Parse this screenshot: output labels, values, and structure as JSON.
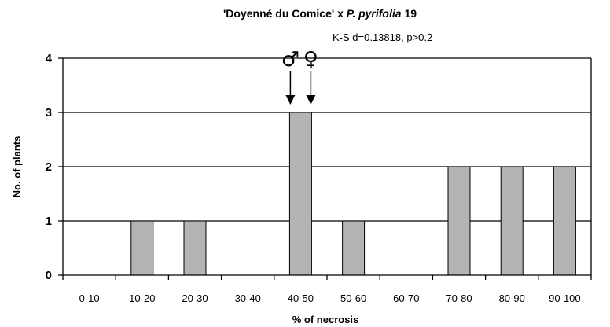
{
  "chart_data": {
    "type": "bar",
    "title_parts": [
      "'Doyenné du Comice' x ",
      "P. pyrifolia",
      " 19"
    ],
    "annotation": "K-S d=0.13818, p>0.2",
    "xlabel": "% of necrosis",
    "ylabel": "No. of plants",
    "categories": [
      "0-10",
      "10-20",
      "20-30",
      "30-40",
      "40-50",
      "50-60",
      "60-70",
      "70-80",
      "80-90",
      "90-100"
    ],
    "values": [
      0,
      1,
      1,
      0,
      3,
      1,
      0,
      2,
      2,
      2
    ],
    "ylim": [
      0,
      4
    ],
    "yticks": [
      0,
      1,
      2,
      3,
      4
    ],
    "grid": "horizontal",
    "bar_color": "#b3b3b3",
    "markers": [
      {
        "symbol": "♂",
        "category": "40-50",
        "offset": "left"
      },
      {
        "symbol": "♀",
        "category": "40-50",
        "offset": "right"
      }
    ]
  }
}
